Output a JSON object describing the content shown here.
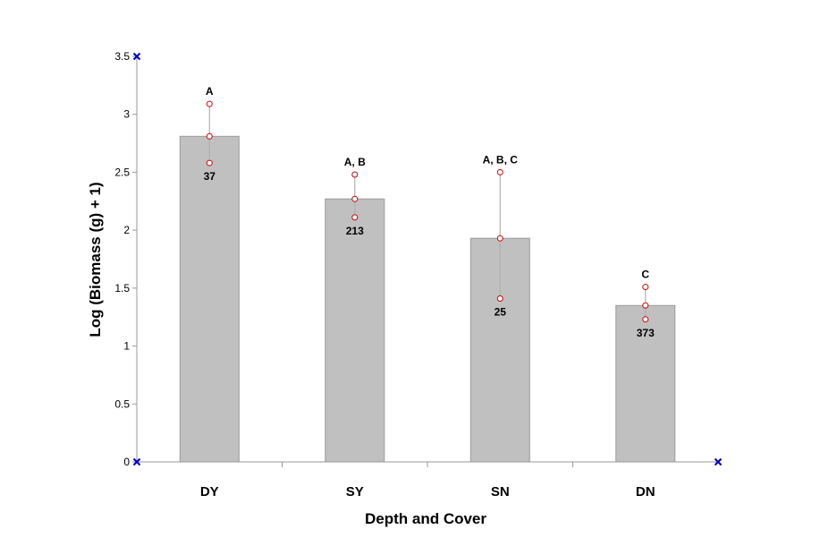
{
  "chart_data": {
    "type": "bar",
    "title": "",
    "xlabel": "Depth and Cover",
    "ylabel": "Log (Biomass (g) + 1)",
    "ylim": [
      0,
      3.5
    ],
    "yticks": [
      0,
      0.5,
      1,
      1.5,
      2,
      2.5,
      3,
      3.5
    ],
    "ytick_labels": [
      "0",
      "0.5",
      "1",
      "1.5",
      "2",
      "2.5",
      "3",
      "3.5"
    ],
    "categories": [
      "DY",
      "SY",
      "SN",
      "DN"
    ],
    "values": [
      2.81,
      2.27,
      1.93,
      1.35
    ],
    "error_upper": [
      3.09,
      2.48,
      2.5,
      1.51
    ],
    "error_lower": [
      2.58,
      2.11,
      1.41,
      1.23
    ],
    "group_labels": [
      "A",
      "A, B",
      "A, B, C",
      "C"
    ],
    "n_labels": [
      "37",
      "213",
      "25",
      "373"
    ],
    "grid": false,
    "legend": "none",
    "colors": {
      "bar_fill": "#c0c0c0",
      "bar_stroke": "#9a9a9a",
      "error_line": "#b0b0b0",
      "error_marker": "#d40000",
      "axis": "#9a9a9a",
      "corner_marker": "#0000cc"
    }
  }
}
